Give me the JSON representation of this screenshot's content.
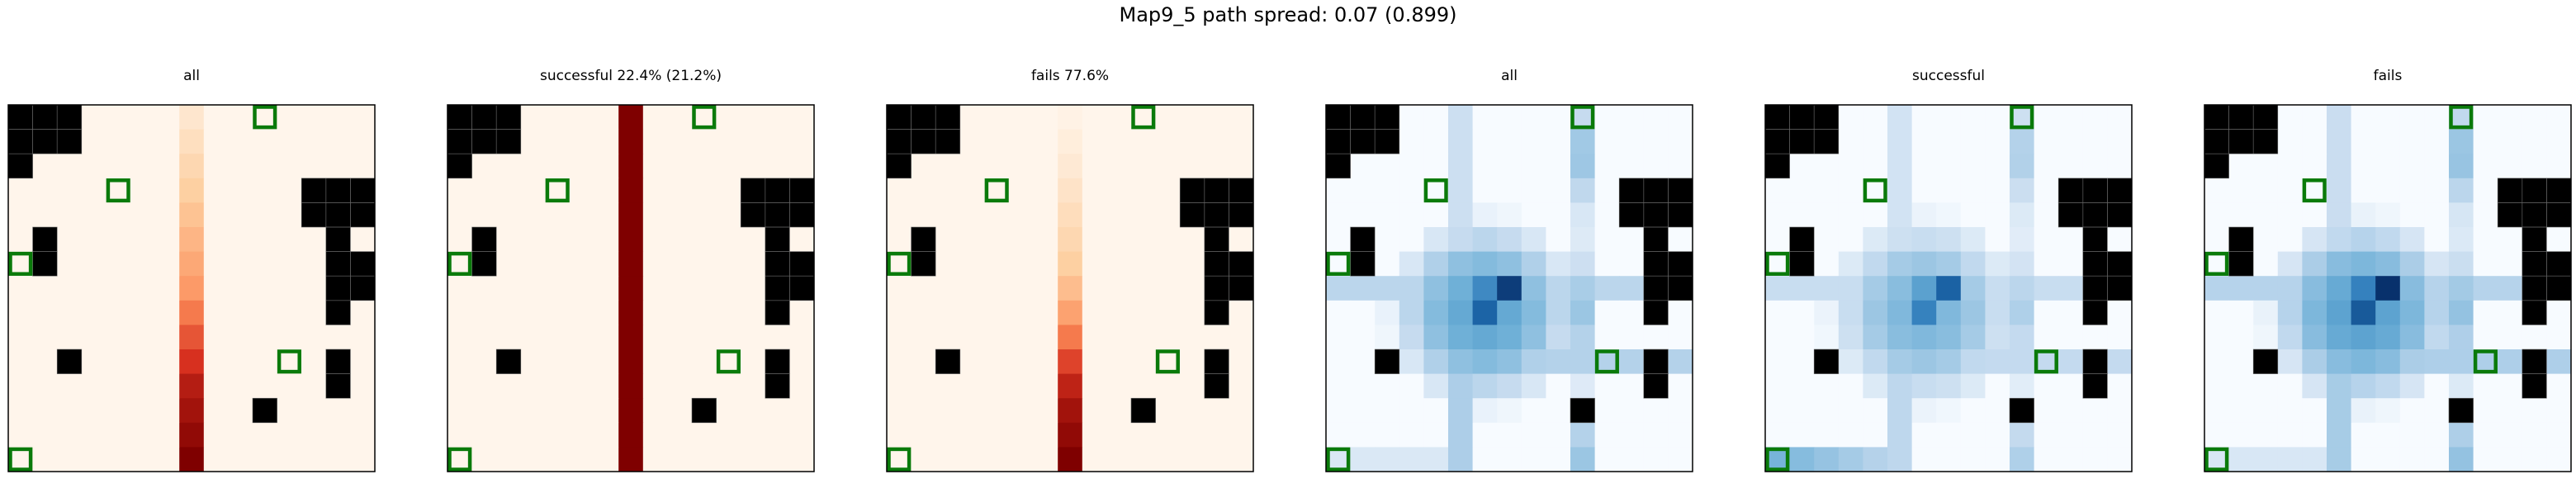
{
  "suptitle": "Map9_5 path spread: 0.07 (0.899)",
  "chart_data": [
    {
      "type": "heatmap",
      "title": "all",
      "colormap": "oranges-red",
      "grid": [
        15,
        15
      ],
      "path_column": 7,
      "column_values": [
        0.1,
        0.15,
        0.2,
        0.25,
        0.3,
        0.35,
        0.4,
        0.45,
        0.55,
        0.65,
        0.75,
        0.85,
        0.9,
        0.95,
        1.0
      ]
    },
    {
      "type": "heatmap",
      "title": "successful 22.4% (21.2%)",
      "colormap": "oranges-red",
      "grid": [
        15,
        15
      ],
      "path_column": 7,
      "column_values": [
        1,
        1,
        1,
        1,
        1,
        1,
        1,
        1,
        1,
        1,
        1,
        1,
        1,
        1,
        1
      ]
    },
    {
      "type": "heatmap",
      "title": "fails 77.6%",
      "colormap": "oranges-red",
      "grid": [
        15,
        15
      ],
      "path_column": 7,
      "column_values": [
        0.02,
        0.05,
        0.08,
        0.12,
        0.16,
        0.2,
        0.25,
        0.32,
        0.42,
        0.55,
        0.7,
        0.82,
        0.9,
        0.95,
        1.0
      ]
    },
    {
      "type": "heatmap",
      "title": "all",
      "colormap": "blues",
      "grid": [
        15,
        15
      ],
      "variant": "all"
    },
    {
      "type": "heatmap",
      "title": "successful",
      "colormap": "blues",
      "grid": [
        15,
        15
      ],
      "variant": "successful"
    },
    {
      "type": "heatmap",
      "title": "fails",
      "colormap": "blues",
      "grid": [
        15,
        15
      ],
      "variant": "fails"
    }
  ],
  "obstacles": [
    [
      0,
      0
    ],
    [
      1,
      0
    ],
    [
      2,
      0
    ],
    [
      0,
      1
    ],
    [
      1,
      1
    ],
    [
      2,
      1
    ],
    [
      0,
      2
    ],
    [
      12,
      3
    ],
    [
      13,
      3
    ],
    [
      14,
      3
    ],
    [
      12,
      4
    ],
    [
      13,
      4
    ],
    [
      14,
      4
    ],
    [
      1,
      5
    ],
    [
      13,
      5
    ],
    [
      1,
      6
    ],
    [
      13,
      6
    ],
    [
      14,
      6
    ],
    [
      13,
      7
    ],
    [
      14,
      7
    ],
    [
      13,
      8
    ],
    [
      2,
      10
    ],
    [
      13,
      10
    ],
    [
      13,
      11
    ],
    [
      10,
      12
    ]
  ],
  "targets": [
    [
      10,
      0
    ],
    [
      4,
      3
    ],
    [
      0,
      6
    ],
    [
      11,
      10
    ],
    [
      0,
      14
    ]
  ]
}
